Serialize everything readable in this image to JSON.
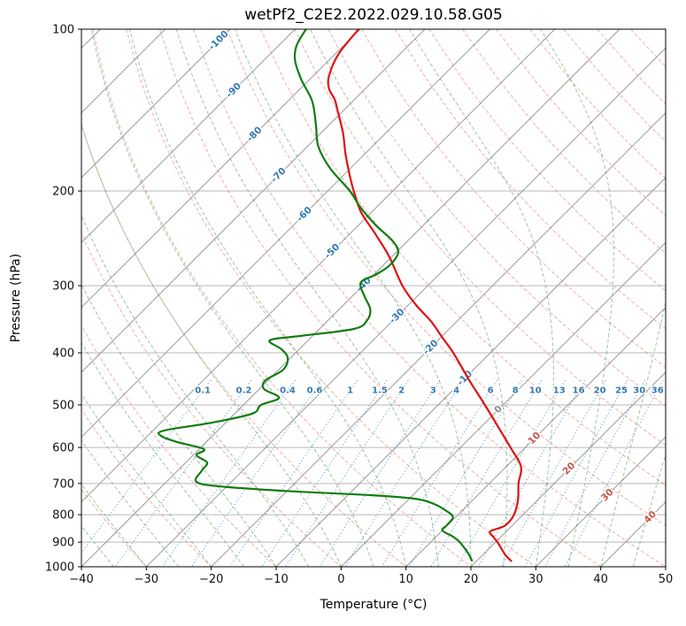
{
  "chart_data": {
    "type": "line",
    "variant": "skew-t-log-p-sounding",
    "title": "wetPf2_C2E2.2022.029.10.58.G05",
    "xlabel": "Temperature (°C)",
    "ylabel": "Pressure (hPa)",
    "xlim": [
      -40,
      50
    ],
    "pressure_lim": [
      100,
      1000
    ],
    "skew_degrees": 45,
    "grid": true,
    "x_ticks": [
      -40,
      -30,
      -20,
      -10,
      0,
      10,
      20,
      30,
      40,
      50
    ],
    "pressure_ticks": [
      100,
      200,
      300,
      400,
      500,
      600,
      700,
      800,
      900,
      1000
    ],
    "isotherms": {
      "start": -120,
      "end": 50,
      "step": 10,
      "labels": [
        {
          "t": -100,
          "p": 105
        },
        {
          "t": -90,
          "p": 130
        },
        {
          "t": -80,
          "p": 157
        },
        {
          "t": -70,
          "p": 187
        },
        {
          "t": -60,
          "p": 221
        },
        {
          "t": -50,
          "p": 259
        },
        {
          "t": -40,
          "p": 299
        },
        {
          "t": -30,
          "p": 342
        },
        {
          "t": -20,
          "p": 391
        },
        {
          "t": -10,
          "p": 446
        },
        {
          "t": 0,
          "p": 510
        },
        {
          "t": 10,
          "p": 577
        },
        {
          "t": 20,
          "p": 657
        },
        {
          "t": 30,
          "p": 736
        },
        {
          "t": 40,
          "p": 809
        }
      ]
    },
    "dry_adiabats": {
      "theta_start": -40,
      "theta_end": 200,
      "step": 10
    },
    "moist_adiabats": {
      "t0_start": -60,
      "t0_end": 45,
      "step": 5
    },
    "mixing_ratio_lines": {
      "values": [
        0.1,
        0.2,
        0.4,
        0.6,
        1,
        1.5,
        2,
        3,
        4,
        6,
        8,
        10,
        13,
        16,
        20,
        25,
        30,
        36
      ],
      "label_pressure": 470,
      "top_pressure": 450
    },
    "series": [
      {
        "name": "temperature",
        "color": "#e01212",
        "points": [
          [
            100,
            -80.2
          ],
          [
            111,
            -79.5
          ],
          [
            122,
            -77.6
          ],
          [
            129,
            -75.6
          ],
          [
            135,
            -73.1
          ],
          [
            142,
            -70.8
          ],
          [
            156,
            -66.6
          ],
          [
            171,
            -62.9
          ],
          [
            188,
            -58.8
          ],
          [
            200,
            -56.0
          ],
          [
            219,
            -51.6
          ],
          [
            241,
            -45.9
          ],
          [
            265,
            -40.4
          ],
          [
            300,
            -33.9
          ],
          [
            326,
            -28.8
          ],
          [
            350,
            -23.9
          ],
          [
            375,
            -19.7
          ],
          [
            400,
            -15.7
          ],
          [
            450,
            -9.0
          ],
          [
            500,
            -2.8
          ],
          [
            550,
            2.7
          ],
          [
            600,
            7.7
          ],
          [
            650,
            12.2
          ],
          [
            700,
            14.5
          ],
          [
            750,
            16.9
          ],
          [
            800,
            18.6
          ],
          [
            839,
            18.9
          ],
          [
            859,
            17.5
          ],
          [
            882,
            19.0
          ],
          [
            900,
            20.3
          ],
          [
            925,
            21.9
          ],
          [
            951,
            23.5
          ],
          [
            975,
            25.3
          ]
        ]
      },
      {
        "name": "dewpoint",
        "color": "#0f7d0f",
        "points": [
          [
            100,
            -88.3
          ],
          [
            107,
            -87.3
          ],
          [
            114,
            -85.3
          ],
          [
            124,
            -81.3
          ],
          [
            136,
            -76.3
          ],
          [
            150,
            -72.2
          ],
          [
            165,
            -68.4
          ],
          [
            181,
            -63.3
          ],
          [
            200,
            -56.6
          ],
          [
            215,
            -52.3
          ],
          [
            232,
            -47.2
          ],
          [
            247,
            -42.5
          ],
          [
            260,
            -39.7
          ],
          [
            275,
            -39.0
          ],
          [
            286,
            -39.7
          ],
          [
            296,
            -40.8
          ],
          [
            314,
            -38.1
          ],
          [
            332,
            -35.2
          ],
          [
            348,
            -34.0
          ],
          [
            361,
            -34.7
          ],
          [
            372,
            -41.8
          ],
          [
            379,
            -45.9
          ],
          [
            394,
            -42.7
          ],
          [
            409,
            -40.4
          ],
          [
            430,
            -39.3
          ],
          [
            450,
            -40.4
          ],
          [
            467,
            -39.3
          ],
          [
            485,
            -35.6
          ],
          [
            500,
            -37.3
          ],
          [
            519,
            -37.3
          ],
          [
            539,
            -42.0
          ],
          [
            558,
            -48.3
          ],
          [
            571,
            -47.9
          ],
          [
            586,
            -44.5
          ],
          [
            604,
            -39.3
          ],
          [
            620,
            -39.5
          ],
          [
            640,
            -36.7
          ],
          [
            662,
            -36.3
          ],
          [
            695,
            -35.4
          ],
          [
            709,
            -30.9
          ],
          [
            724,
            -19.1
          ],
          [
            736,
            -6.3
          ],
          [
            747,
            0.8
          ],
          [
            764,
            4.6
          ],
          [
            788,
            7.7
          ],
          [
            809,
            9.6
          ],
          [
            837,
            9.9
          ],
          [
            856,
            10.0
          ],
          [
            879,
            12.6
          ],
          [
            900,
            14.5
          ],
          [
            930,
            16.6
          ],
          [
            952,
            18.0
          ],
          [
            974,
            19.2
          ]
        ]
      }
    ],
    "colors": {
      "background": "#ffffff",
      "spine": "#000000",
      "tick_text": "#111111",
      "isobar": "#b8b8b8",
      "isotherm": "#9a9a9a",
      "dry_adiabat": "rgba(226,110,92,0.55)",
      "moist_adiabat": "rgba(76,152,76,0.55)",
      "mixing_ratio": "rgba(46,126,188,0.85)",
      "isotherm_label_neg": "#3579b1",
      "isotherm_label_zero": "#8a8a8a",
      "isotherm_label_pos": "#c9524a",
      "mixing_label": "#3579b1"
    }
  }
}
